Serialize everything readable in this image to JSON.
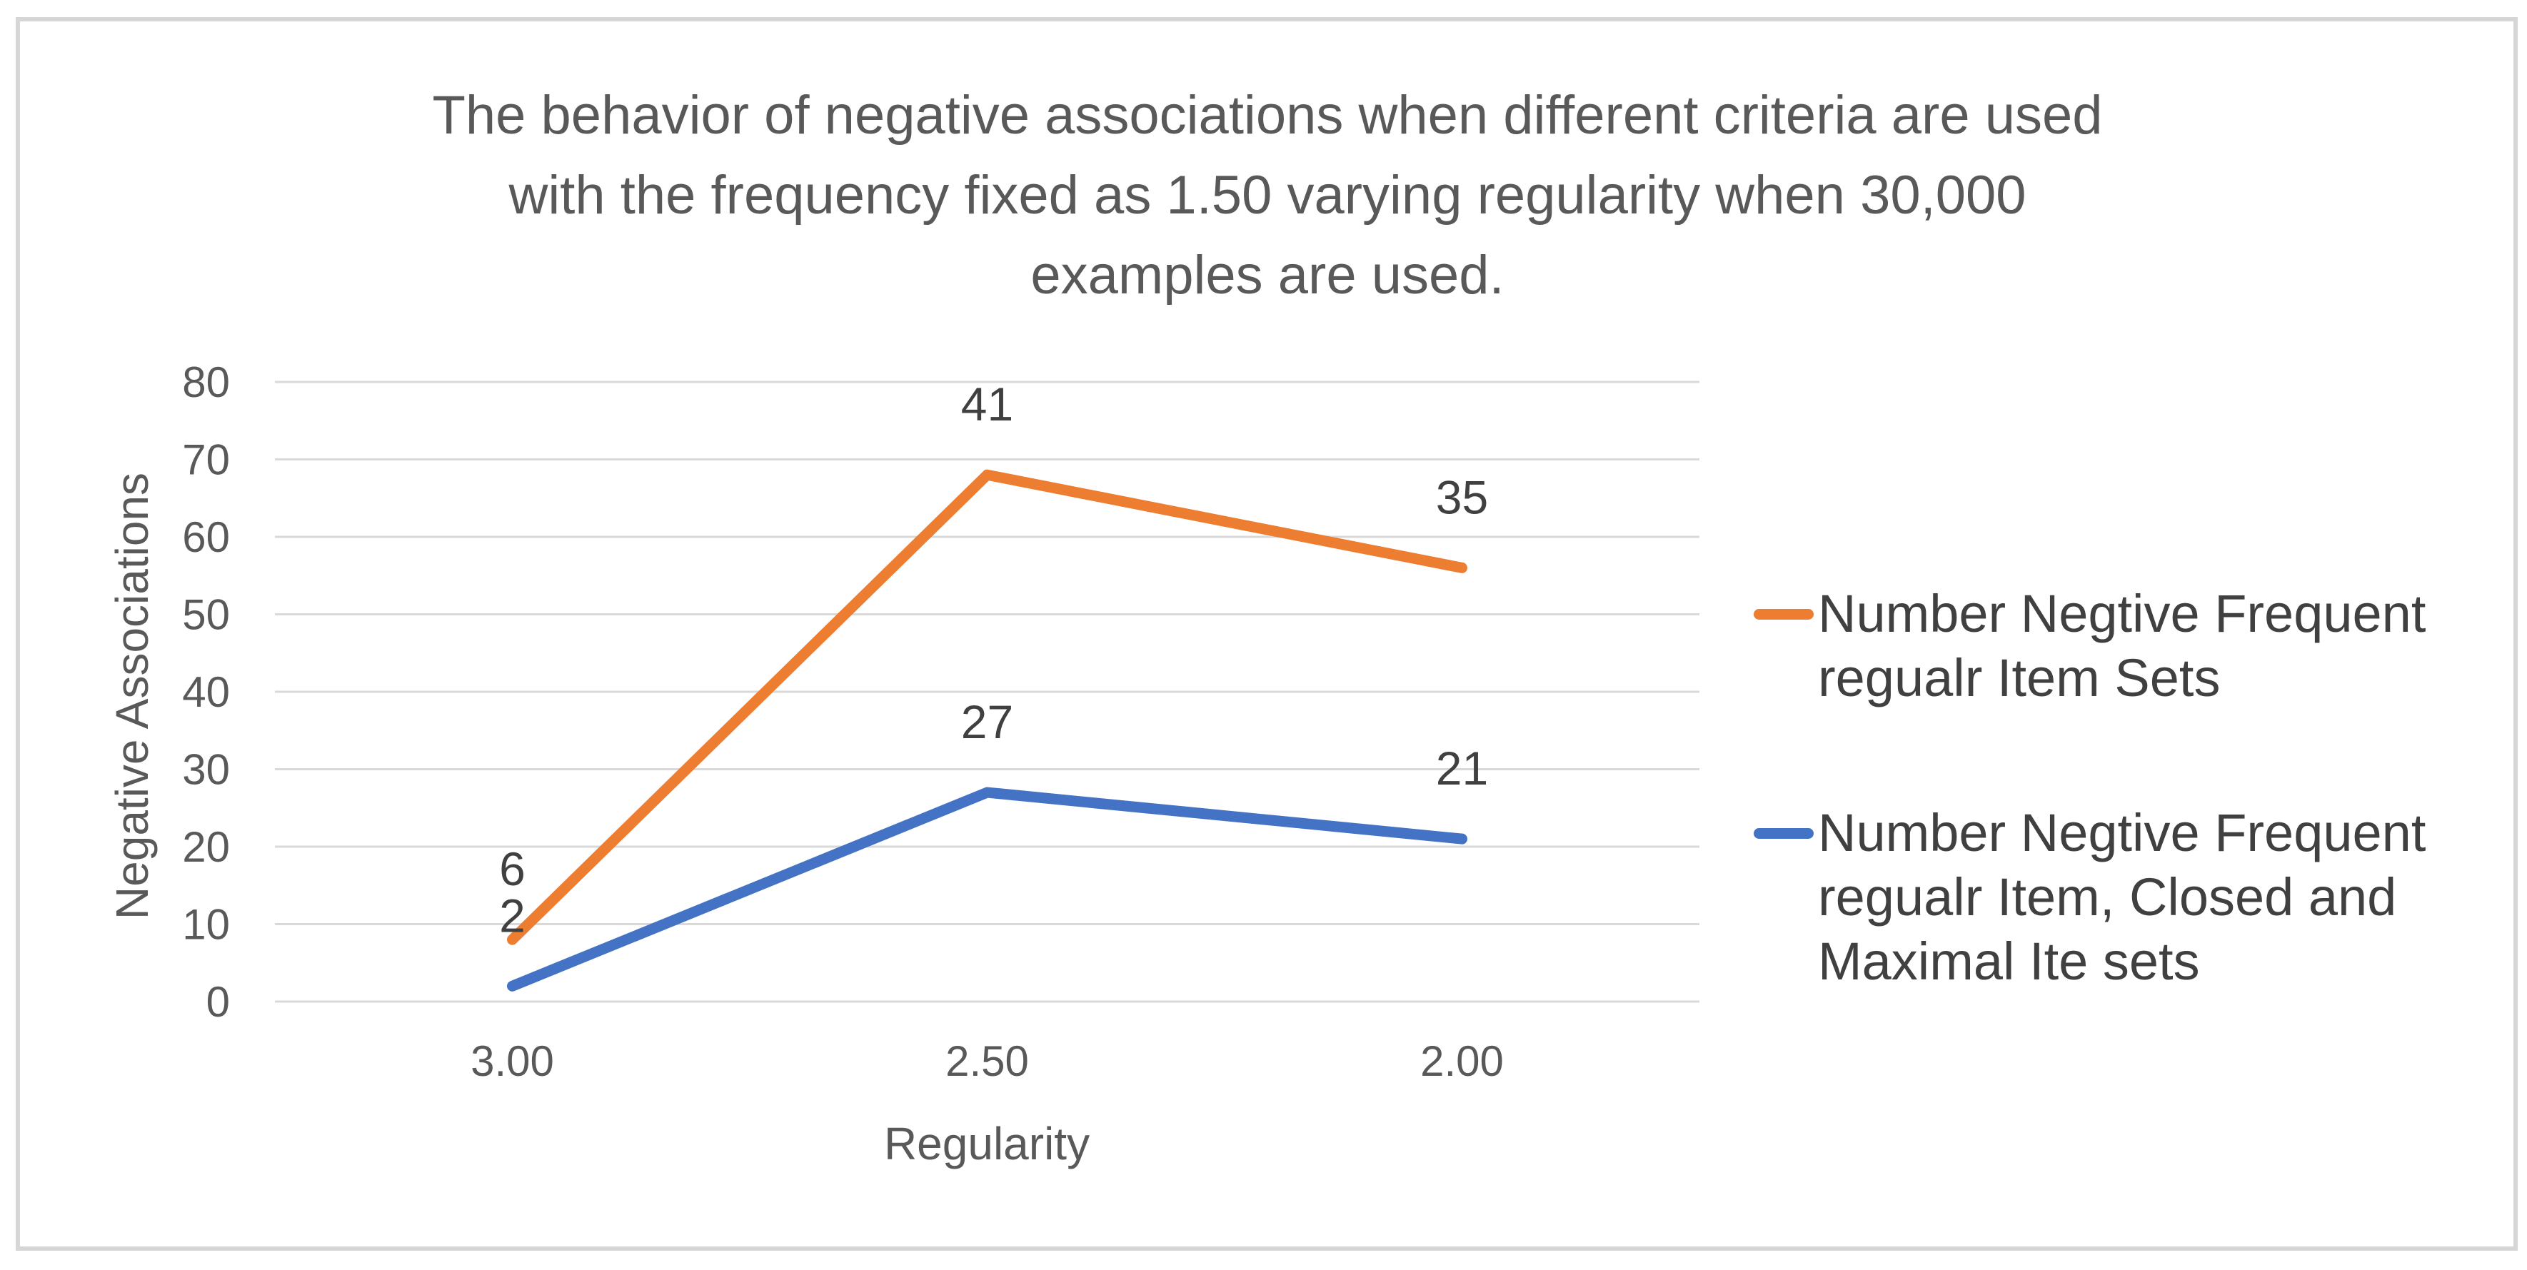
{
  "chart_data": {
    "type": "line",
    "stacked": true,
    "title": "The behavior of negative associations when different criteria are used with the frequency fixed as 1.50 varying regularity when 30,000 examples are used.",
    "title_lines": [
      "The behavior of negative associations when different criteria are used",
      "with the frequency fixed as 1.50 varying regularity when 30,000",
      "examples are used."
    ],
    "xlabel": "Regularity",
    "ylabel": "Negative Associations",
    "categories": [
      "3.00",
      "2.50",
      "2.00"
    ],
    "x_values": [
      3.0,
      2.5,
      2.0
    ],
    "series": [
      {
        "name": "Number Negtive Frequent regualr Item Sets",
        "values": [
          6,
          41,
          35
        ],
        "data_labels": [
          "6",
          "41",
          "35"
        ],
        "plotted_cumulative": [
          8,
          68,
          56
        ],
        "color": "#ED7D31"
      },
      {
        "name": "Number Negtive Frequent regualr Item, Closed and Maximal Ite sets",
        "values": [
          2,
          27,
          21
        ],
        "data_labels": [
          "2",
          "27",
          "21"
        ],
        "plotted_cumulative": [
          2,
          27,
          21
        ],
        "color": "#4472C4"
      }
    ],
    "ylim": [
      0,
      80
    ],
    "yticks": [
      0,
      10,
      20,
      30,
      40,
      50,
      60,
      70,
      80
    ],
    "grid": true,
    "legend_position": "right",
    "note": "Stacked line chart: the orange series is drawn cumulatively on top of the blue series (at 8, 68, 56) while its data labels show the series' own values (6, 41, 35)."
  },
  "colors": {
    "series_orange": "#ED7D31",
    "series_blue": "#4472C4",
    "gridline": "#D9D9D9",
    "axis_text": "#595959",
    "label_text": "#404040",
    "frame_border": "#D6D6D6",
    "background": "#FFFFFF"
  }
}
